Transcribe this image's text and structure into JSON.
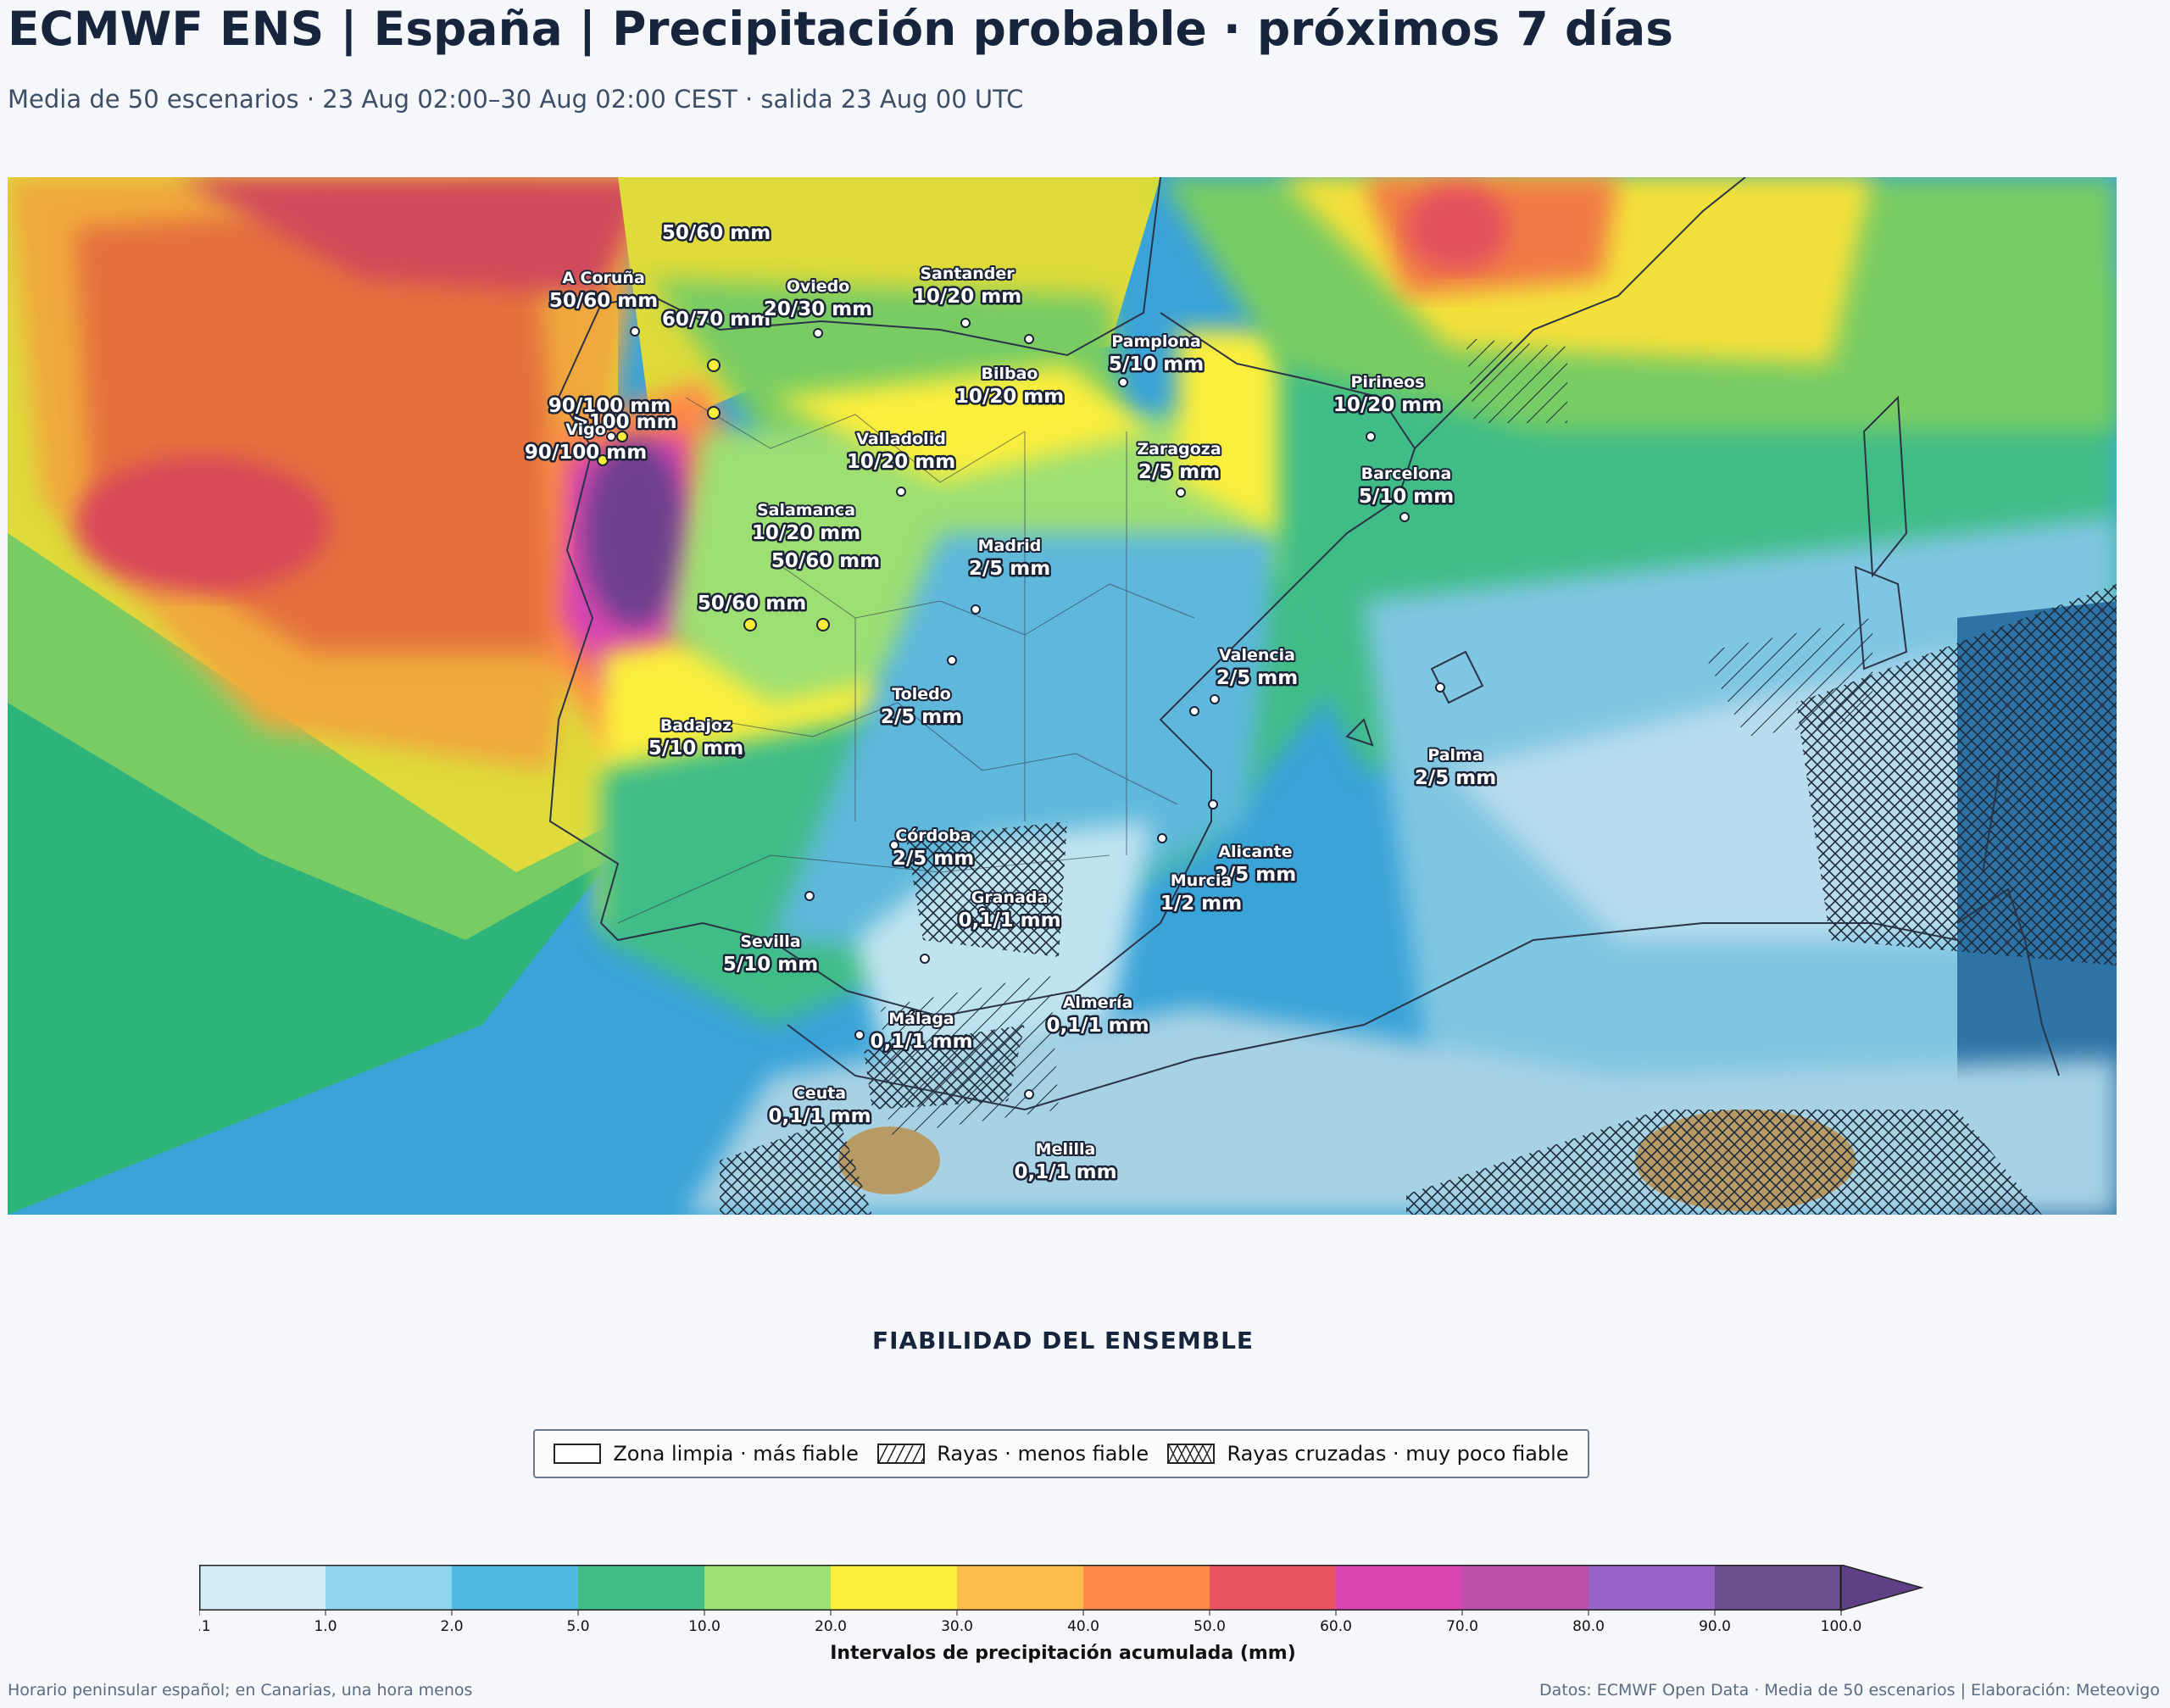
{
  "header": {
    "title": "ECMWF ENS | España | Precipitación probable · próximos 7 días",
    "subtitle": "Media de 50 escenarios · 23 Aug 02:00–30 Aug 02:00 CEST · salida 23 Aug 00 UTC"
  },
  "map": {
    "labels": [
      {
        "name": "",
        "value": "50/60 mm"
      },
      {
        "name": "A Coruña",
        "value": "50/60 mm"
      },
      {
        "name": "",
        "value": "60/70 mm"
      },
      {
        "name": "Oviedo",
        "value": "20/30 mm"
      },
      {
        "name": "Santander",
        "value": "10/20 mm"
      },
      {
        "name": "Pamplona",
        "value": "5/10 mm"
      },
      {
        "name": "Bilbao",
        "value": "10/20 mm"
      },
      {
        "name": "Pirineos",
        "value": "10/20 mm"
      },
      {
        "name": "",
        "value": "90/100 mm"
      },
      {
        "name": "",
        "value": ">100 mm"
      },
      {
        "name": "Vigo",
        "value": "90/100 mm"
      },
      {
        "name": "Valladolid",
        "value": "10/20 mm"
      },
      {
        "name": "Zaragoza",
        "value": "2/5 mm"
      },
      {
        "name": "Barcelona",
        "value": "5/10 mm"
      },
      {
        "name": "Salamanca",
        "value": "10/20 mm"
      },
      {
        "name": "",
        "value": "50/60 mm"
      },
      {
        "name": "Madrid",
        "value": "2/5 mm"
      },
      {
        "name": "",
        "value": "50/60 mm"
      },
      {
        "name": "Valencia",
        "value": "2/5 mm"
      },
      {
        "name": "Toledo",
        "value": "2/5 mm"
      },
      {
        "name": "Badajoz",
        "value": "5/10 mm"
      },
      {
        "name": "Palma",
        "value": "2/5 mm"
      },
      {
        "name": "Córdoba",
        "value": "2/5 mm"
      },
      {
        "name": "Alicante",
        "value": "2/5 mm"
      },
      {
        "name": "Granada",
        "value": "0,1/1 mm"
      },
      {
        "name": "Murcia",
        "value": "1/2 mm"
      },
      {
        "name": "Sevilla",
        "value": "5/10 mm"
      },
      {
        "name": "Almería",
        "value": "0,1/1 mm"
      },
      {
        "name": "Málaga",
        "value": "0,1/1 mm"
      },
      {
        "name": "Ceuta",
        "value": "0,1/1 mm"
      },
      {
        "name": "Melilla",
        "value": "0,1/1 mm"
      }
    ]
  },
  "reliability": {
    "title": "FIABILIDAD DEL ENSEMBLE",
    "items": [
      {
        "label": "Zona limpia · más fiable",
        "pattern": "none"
      },
      {
        "label": "Rayas · menos fiable",
        "pattern": "hatch"
      },
      {
        "label": "Rayas cruzadas · muy poco fiable",
        "pattern": "crosshatch"
      }
    ]
  },
  "colorbar": {
    "ticks": [
      "0.1",
      "1.0",
      "2.0",
      "5.0",
      "10.0",
      "20.0",
      "30.0",
      "40.0",
      "50.0",
      "60.0",
      "70.0",
      "80.0",
      "90.0",
      "100.0"
    ],
    "colors": [
      "#d4eef7",
      "#8fd5ef",
      "#4fb9e2",
      "#40bd87",
      "#9ddf73",
      "#fbee3c",
      "#fdbd4a",
      "#fd8a4a",
      "#ea5462",
      "#d845b2",
      "#bb4ea6",
      "#9663cb",
      "#6d4e8f"
    ],
    "extend_color": "#5f3f85",
    "label": "Intervalos de precipitación acumulada (mm)"
  },
  "footer": {
    "left": "Horario peninsular español; en Canarias, una hora menos",
    "right": "Datos: ECMWF Open Data · Media de 50 escenarios | Elaboración: Meteovigo"
  }
}
